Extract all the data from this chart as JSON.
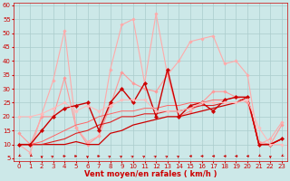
{
  "xlabel": "Vent moyen/en rafales ( km/h )",
  "xlim": [
    -0.5,
    23.5
  ],
  "ylim": [
    4,
    61
  ],
  "yticks": [
    5,
    10,
    15,
    20,
    25,
    30,
    35,
    40,
    45,
    50,
    55,
    60
  ],
  "xticks": [
    0,
    1,
    2,
    3,
    4,
    5,
    6,
    7,
    8,
    9,
    10,
    11,
    12,
    13,
    14,
    15,
    16,
    17,
    18,
    19,
    20,
    21,
    22,
    23
  ],
  "background_color": "#cce8e8",
  "grid_color": "#aacccc",
  "lines": [
    {
      "x": [
        0,
        1,
        2,
        3,
        4,
        5,
        6,
        7,
        8,
        9,
        10,
        11,
        12,
        13,
        14,
        15,
        16,
        17,
        18,
        19,
        20,
        21,
        22,
        23
      ],
      "y": [
        14,
        10,
        20,
        20,
        34,
        16,
        10,
        13,
        24,
        36,
        32,
        30,
        29,
        35,
        20,
        22,
        25,
        29,
        29,
        27,
        25,
        11,
        10,
        17
      ],
      "color": "#ff9999",
      "lw": 0.8,
      "marker": "D",
      "markersize": 1.8
    },
    {
      "x": [
        0,
        1,
        2,
        3,
        4,
        5,
        6,
        7,
        8,
        9,
        10,
        11,
        12,
        13,
        14,
        15,
        16,
        17,
        18,
        19,
        20,
        21,
        22,
        23
      ],
      "y": [
        10,
        7,
        21,
        33,
        51,
        16,
        11,
        13,
        37,
        53,
        55,
        32,
        57,
        35,
        40,
        47,
        48,
        49,
        39,
        40,
        35,
        10,
        12,
        18
      ],
      "color": "#ffaaaa",
      "lw": 0.8,
      "marker": "D",
      "markersize": 1.8
    },
    {
      "x": [
        0,
        1,
        2,
        3,
        4,
        5,
        6,
        7,
        8,
        9,
        10,
        11,
        12,
        13,
        14,
        15,
        16,
        17,
        18,
        19,
        20,
        21,
        22,
        23
      ],
      "y": [
        10,
        10,
        10,
        10,
        10,
        11,
        10,
        10,
        14,
        15,
        17,
        18,
        19,
        20,
        20,
        21,
        22,
        23,
        24,
        25,
        27,
        10,
        10,
        12
      ],
      "color": "#cc0000",
      "lw": 0.9,
      "marker": null,
      "markersize": 0
    },
    {
      "x": [
        0,
        1,
        2,
        3,
        4,
        5,
        6,
        7,
        8,
        9,
        10,
        11,
        12,
        13,
        14,
        15,
        16,
        17,
        18,
        19,
        20,
        21,
        22,
        23
      ],
      "y": [
        10,
        10,
        10,
        11,
        12,
        14,
        15,
        17,
        18,
        20,
        20,
        21,
        21,
        22,
        22,
        23,
        24,
        24,
        25,
        25,
        27,
        10,
        10,
        12
      ],
      "color": "#dd2222",
      "lw": 0.8,
      "marker": null,
      "markersize": 0
    },
    {
      "x": [
        0,
        1,
        2,
        3,
        4,
        5,
        6,
        7,
        8,
        9,
        10,
        11,
        12,
        13,
        14,
        15,
        16,
        17,
        18,
        19,
        20,
        21,
        22,
        23
      ],
      "y": [
        10,
        10,
        11,
        13,
        15,
        17,
        18,
        20,
        21,
        22,
        22,
        23,
        23,
        24,
        24,
        25,
        25,
        26,
        26,
        27,
        27,
        10,
        10,
        12
      ],
      "color": "#ff6666",
      "lw": 0.7,
      "marker": null,
      "markersize": 0
    },
    {
      "x": [
        0,
        1,
        2,
        3,
        4,
        5,
        6,
        7,
        8,
        9,
        10,
        11,
        12,
        13,
        14,
        15,
        16,
        17,
        18,
        19,
        20,
        21,
        22,
        23
      ],
      "y": [
        10,
        10,
        15,
        20,
        23,
        24,
        25,
        15,
        25,
        30,
        25,
        32,
        20,
        37,
        20,
        24,
        25,
        22,
        26,
        27,
        27,
        10,
        10,
        12
      ],
      "color": "#cc0000",
      "lw": 1.0,
      "marker": "D",
      "markersize": 2.2
    },
    {
      "x": [
        0,
        1,
        2,
        3,
        4,
        5,
        6,
        7,
        8,
        9,
        10,
        11,
        12,
        13,
        14,
        15,
        16,
        17,
        18,
        19,
        20,
        21,
        22,
        23
      ],
      "y": [
        20,
        20,
        21,
        23,
        25,
        22,
        24,
        22,
        24,
        26,
        26,
        26,
        22,
        22,
        22,
        23,
        25,
        25,
        25,
        25,
        26,
        16,
        10,
        10
      ],
      "color": "#ffbbbb",
      "lw": 0.8,
      "marker": "D",
      "markersize": 1.8
    }
  ],
  "wind_symbols": [
    {
      "x": 0,
      "type": "down-left"
    },
    {
      "x": 1,
      "type": "down-left"
    },
    {
      "x": 2,
      "type": "down"
    },
    {
      "x": 3,
      "type": "up-right"
    },
    {
      "x": 4,
      "type": "right"
    },
    {
      "x": 5,
      "type": "right"
    },
    {
      "x": 6,
      "type": "down"
    },
    {
      "x": 7,
      "type": "right"
    },
    {
      "x": 8,
      "type": "up-right"
    },
    {
      "x": 9,
      "type": "up-right"
    },
    {
      "x": 10,
      "type": "up-right"
    },
    {
      "x": 11,
      "type": "up-right"
    },
    {
      "x": 12,
      "type": "up-right"
    },
    {
      "x": 13,
      "type": "up-right"
    },
    {
      "x": 14,
      "type": "up-right"
    },
    {
      "x": 15,
      "type": "left"
    },
    {
      "x": 16,
      "type": "left"
    },
    {
      "x": 17,
      "type": "left"
    },
    {
      "x": 18,
      "type": "left"
    },
    {
      "x": 19,
      "type": "left"
    },
    {
      "x": 20,
      "type": "left"
    },
    {
      "x": 21,
      "type": "down-left"
    },
    {
      "x": 22,
      "type": "down"
    },
    {
      "x": 23,
      "type": "down-left"
    }
  ],
  "arrow_color": "#cc0000",
  "label_color": "#cc0000",
  "tick_fontsize": 5,
  "xlabel_fontsize": 6
}
